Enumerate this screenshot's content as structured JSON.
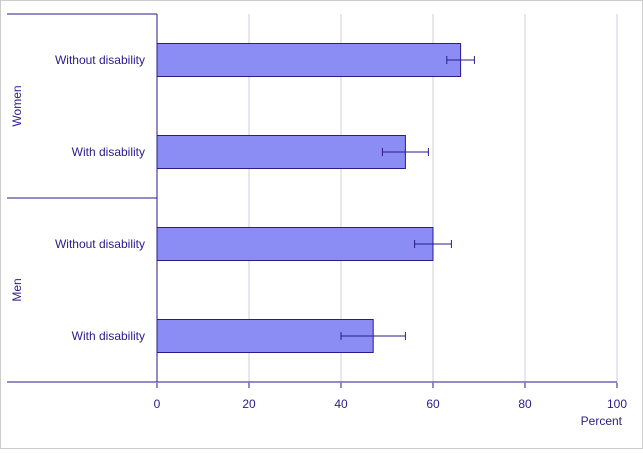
{
  "chart_data": {
    "type": "bar",
    "orientation": "horizontal",
    "title": "",
    "xlabel": "Percent",
    "ylabel": "",
    "xlim": [
      0,
      100
    ],
    "x_ticks": [
      0,
      20,
      40,
      60,
      80,
      100
    ],
    "grid": true,
    "groups": [
      {
        "name": "Women",
        "bars": [
          {
            "category": "Without disability",
            "value": 66,
            "error_low": 63,
            "error_high": 69
          },
          {
            "category": "With disability",
            "value": 54,
            "error_low": 49,
            "error_high": 59
          }
        ]
      },
      {
        "name": "Men",
        "bars": [
          {
            "category": "Without disability",
            "value": 60,
            "error_low": 56,
            "error_high": 64
          },
          {
            "category": "With disability",
            "value": 47,
            "error_low": 40,
            "error_high": 54
          }
        ]
      }
    ],
    "colors": {
      "bar_fill": "#8c8cf5",
      "bar_stroke": "#2a1a8a",
      "text": "#2a1a8a",
      "axis": "#2a1a8a",
      "grid": "#cfcfdc",
      "border": "#cccccc"
    }
  }
}
